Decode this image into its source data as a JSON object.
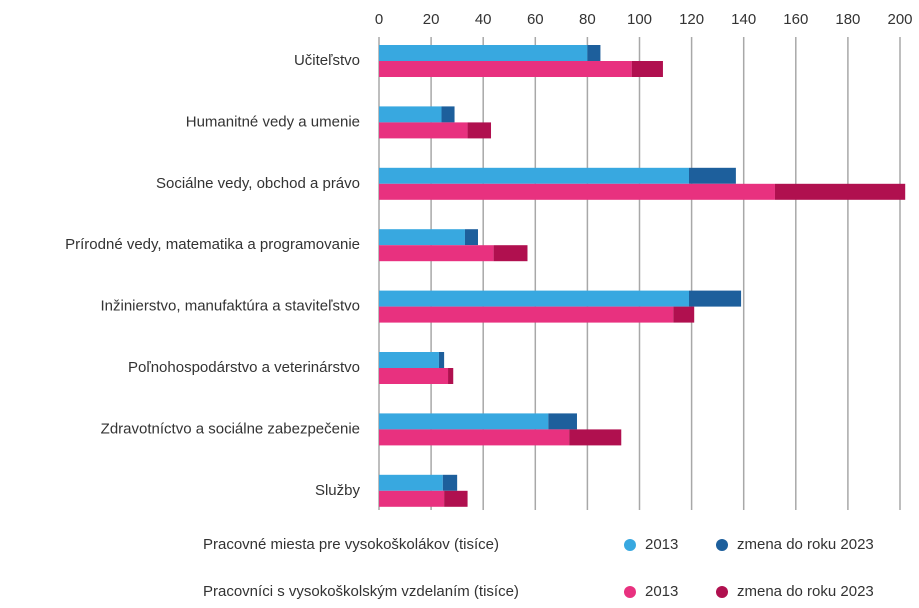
{
  "chart_data": {
    "type": "bar",
    "orientation": "horizontal",
    "stacked": true,
    "categories": [
      "Učiteľstvo",
      "Humanitné vedy a umenie",
      "Sociálne vedy, obchod a právo",
      "Prírodné vedy, matematika a programovanie",
      "Inžinierstvo, manufaktúra a staviteľstvo",
      "Poľnohospodárstvo a veterinárstvo",
      "Zdravotníctvo a sociálne zabezpečenie",
      "Služby"
    ],
    "groups": [
      {
        "label": "Pracovné miesta pre vysokoškolákov (tisíce)",
        "series": [
          {
            "name": "2013",
            "color": "#38a8e0",
            "values": [
              80,
              24,
              119,
              33,
              119,
              23,
              65,
              24.5
            ]
          },
          {
            "name": "zmena do roku 2023",
            "color": "#1d5f9c",
            "values": [
              5,
              5,
              18,
              5,
              20,
              2,
              11,
              5.5
            ]
          }
        ]
      },
      {
        "label": "Pracovníci s vysokoškolským vzdelaním (tisíce)",
        "series": [
          {
            "name": "2013",
            "color": "#e8317f",
            "values": [
              97,
              34,
              152,
              44,
              113,
              26.5,
              73,
              25
            ]
          },
          {
            "name": "zmena do roku 2023",
            "color": "#b0104f",
            "values": [
              12,
              9,
              50,
              13,
              8,
              2,
              20,
              9
            ]
          }
        ]
      }
    ],
    "xlim": [
      0,
      200
    ],
    "xticks": [
      0,
      20,
      40,
      60,
      80,
      100,
      120,
      140,
      160,
      180,
      200
    ],
    "grid": true
  }
}
